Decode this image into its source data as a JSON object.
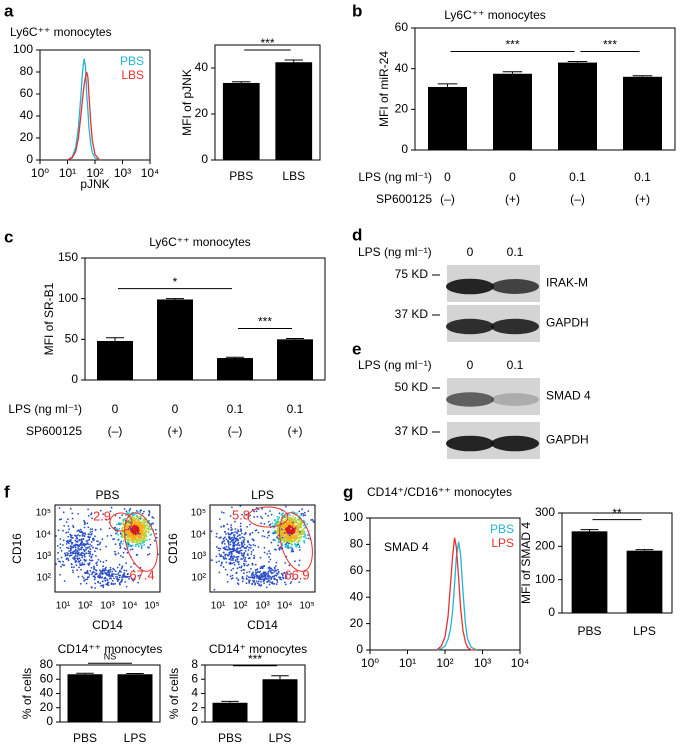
{
  "panels": [
    "a",
    "b",
    "c",
    "d",
    "e",
    "f",
    "g"
  ],
  "chart_data": [
    {
      "type": "line",
      "xscale": "log",
      "title": "Ly6C⁺⁺ monocytes",
      "xlabel": "pJNK",
      "x": [
        10,
        15,
        20,
        25,
        30,
        35,
        40,
        45,
        50,
        55,
        60,
        70,
        80,
        100,
        150
      ],
      "series": [
        {
          "name": "PBS",
          "color": "#1fb5d6",
          "values": [
            0,
            3,
            12,
            30,
            55,
            80,
            92,
            85,
            60,
            45,
            30,
            15,
            7,
            2,
            0
          ]
        },
        {
          "name": "LBS",
          "color": "#e8312f",
          "values": [
            0,
            2,
            8,
            20,
            38,
            55,
            68,
            76,
            80,
            75,
            60,
            35,
            18,
            5,
            0
          ]
        }
      ],
      "xlim": [
        1,
        10000
      ],
      "xticks": [
        {
          "value": 1,
          "label": "10⁰"
        },
        {
          "value": 10,
          "label": "10¹"
        },
        {
          "value": 100,
          "label": "10²"
        },
        {
          "value": 1000,
          "label": "10³"
        },
        {
          "value": 10000,
          "label": "10⁴"
        }
      ],
      "ylim": [
        0,
        100
      ],
      "yticks": [
        0,
        20,
        40,
        60,
        80,
        100
      ],
      "legend": "upper right"
    },
    {
      "type": "bar",
      "ylabel": "MFI of pJNK",
      "categories": [
        "PBS",
        "LBS"
      ],
      "values": [
        33.5,
        42.5
      ],
      "errors": [
        0.5,
        1
      ],
      "color": "#000000",
      "ylim": [
        0,
        50
      ],
      "yticks": [
        0,
        20,
        40
      ],
      "brackets": [
        {
          "from": 0,
          "to": 1,
          "label": "***"
        }
      ]
    },
    {
      "type": "bar",
      "title": "Ly6C⁺⁺ monocytes",
      "ylabel": "MFI of miR-24",
      "values": [
        31,
        37.5,
        43,
        36
      ],
      "errors": [
        1.5,
        1,
        0.5,
        0.5
      ],
      "color": "#000000",
      "ylim": [
        0,
        60
      ],
      "yticks": [
        0,
        20,
        40,
        60
      ],
      "conditions": [
        {
          "label": "LPS (ng ml⁻¹)",
          "values": [
            "0",
            "0",
            "0.1",
            "0.1"
          ]
        },
        {
          "label": "SP600125",
          "values": [
            "(–)",
            "(+)",
            "(–)",
            "(+)"
          ]
        }
      ],
      "brackets": [
        {
          "from": 0,
          "to": 2,
          "label": "***"
        },
        {
          "from": 2,
          "to": 3,
          "label": "***"
        }
      ]
    },
    {
      "type": "bar",
      "title": "Ly6C⁺⁺ monocytes",
      "ylabel": "MFI of SR-B1",
      "values": [
        48,
        99,
        27,
        50
      ],
      "errors": [
        4,
        1,
        1,
        1
      ],
      "color": "#000000",
      "ylim": [
        0,
        150
      ],
      "yticks": [
        0,
        50,
        100,
        150
      ],
      "conditions": [
        {
          "label": "LPS (ng ml⁻¹)",
          "values": [
            "0",
            "0",
            "0.1",
            "0.1"
          ]
        },
        {
          "label": "SP600125",
          "values": [
            "(–)",
            "(+)",
            "(–)",
            "(+)"
          ]
        }
      ],
      "brackets": [
        {
          "from": 0,
          "to": 2,
          "label": "*"
        },
        {
          "from": 2,
          "to": 3,
          "label": "***"
        }
      ]
    },
    {
      "type": "bar",
      "title": "CD14⁺⁺ monocytes",
      "ylabel": "% of cells",
      "categories": [
        "PBS",
        "LPS"
      ],
      "values": [
        67,
        67
      ],
      "errors": [
        1.5,
        1
      ],
      "color": "#000000",
      "ylim": [
        0,
        80
      ],
      "yticks": [
        0,
        20,
        40,
        60,
        80
      ],
      "brackets": [
        {
          "from": 0,
          "to": 1,
          "label": "NS"
        }
      ]
    },
    {
      "type": "bar",
      "title": "CD14⁺ monocytes",
      "ylabel": "% of cells",
      "categories": [
        "PBS",
        "LPS"
      ],
      "values": [
        2.7,
        6
      ],
      "errors": [
        0.2,
        0.5
      ],
      "color": "#000000",
      "ylim": [
        0,
        8
      ],
      "yticks": [
        0,
        2,
        4,
        6,
        8
      ],
      "brackets": [
        {
          "from": 0,
          "to": 1,
          "label": "***"
        }
      ]
    },
    {
      "type": "line",
      "xscale": "log",
      "title": "CD14⁺/CD16⁺⁺ monocytes",
      "annotation": "SMAD 4",
      "x": [
        60,
        80,
        100,
        120,
        140,
        160,
        180,
        200,
        230,
        260,
        300,
        350,
        400,
        500,
        700
      ],
      "series": [
        {
          "name": "PBS",
          "color": "#1fb5d6",
          "values": [
            0,
            1,
            3,
            8,
            16,
            30,
            50,
            70,
            82,
            72,
            45,
            20,
            8,
            2,
            0
          ]
        },
        {
          "name": "LPS",
          "color": "#e8312f",
          "values": [
            0,
            3,
            10,
            25,
            50,
            72,
            85,
            78,
            55,
            32,
            15,
            6,
            2,
            0,
            0
          ]
        }
      ],
      "xlim": [
        1,
        10000
      ],
      "xticks": [
        {
          "value": 1,
          "label": "10⁰"
        },
        {
          "value": 10,
          "label": "10¹"
        },
        {
          "value": 100,
          "label": "10²"
        },
        {
          "value": 1000,
          "label": "10³"
        },
        {
          "value": 10000,
          "label": "10⁴"
        }
      ],
      "ylim": [
        0,
        100
      ],
      "yticks": [
        0,
        20,
        40,
        60,
        80,
        100
      ],
      "legend": "upper right"
    },
    {
      "type": "bar",
      "ylabel": "MFI of SMAD 4",
      "categories": [
        "PBS",
        "LPS"
      ],
      "values": [
        245,
        187
      ],
      "errors": [
        5,
        3
      ],
      "color": "#000000",
      "ylim": [
        0,
        300
      ],
      "yticks": [
        0,
        100,
        200,
        300
      ],
      "brackets": [
        {
          "from": 0,
          "to": 1,
          "label": "**"
        }
      ]
    }
  ],
  "blots": [
    {
      "header": "LPS (ng ml⁻¹)",
      "lanes": [
        "0",
        "0.1"
      ],
      "rows": [
        {
          "marker": "75 KD",
          "label": "IRAK-M"
        },
        {
          "marker": "37 KD",
          "label": "GAPDH"
        }
      ]
    },
    {
      "header": "LPS (ng ml⁻¹)",
      "lanes": [
        "0",
        "0.1"
      ],
      "rows": [
        {
          "marker": "50 KD",
          "label": "SMAD 4"
        },
        {
          "marker": "37 KD",
          "label": "GAPDH"
        }
      ]
    }
  ],
  "flow_plots": [
    {
      "title": "PBS",
      "xlabel": "CD14",
      "ylabel": "CD16",
      "xticks": [
        "10¹",
        "10²",
        "10³",
        "10⁴",
        "10⁵"
      ],
      "yticks": [
        "10²",
        "10³",
        "10⁴",
        "10⁵"
      ],
      "gates": [
        "2.9",
        "67.4"
      ]
    },
    {
      "title": "LPS",
      "xlabel": "CD14",
      "ylabel": "CD16",
      "xticks": [
        "10¹",
        "10²",
        "10³",
        "10⁴",
        "10⁵"
      ],
      "yticks": [
        "10²",
        "10³",
        "10⁴",
        "10⁵"
      ],
      "gates": [
        "5.8",
        "66.9"
      ]
    }
  ]
}
